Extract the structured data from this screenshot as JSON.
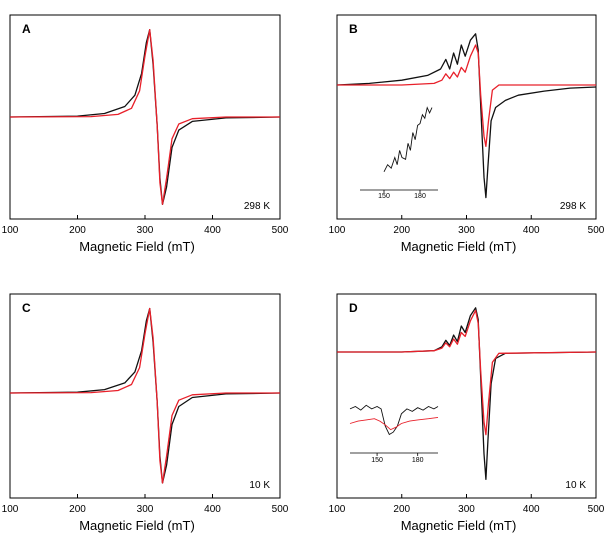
{
  "colors": {
    "black": "#111111",
    "red": "#e8202a",
    "axis": "#000000"
  },
  "chart_data": [
    {
      "id": "A",
      "type": "line",
      "panel_label": "A",
      "temperature_label": "298 K",
      "xlabel": "Magnetic Field (mT)",
      "ylabel": "",
      "title": "",
      "xlim": [
        100,
        500
      ],
      "ylim": [
        -1.1,
        1.1
      ],
      "xticks": [
        100,
        200,
        300,
        400,
        500
      ],
      "grid": false,
      "legend": "none",
      "series": [
        {
          "color": "black",
          "points": [
            [
              100,
              0
            ],
            [
              200,
              0.01
            ],
            [
              240,
              0.04
            ],
            [
              270,
              0.12
            ],
            [
              285,
              0.25
            ],
            [
              295,
              0.5
            ],
            [
              302,
              0.85
            ],
            [
              307,
              1.0
            ],
            [
              312,
              0.6
            ],
            [
              318,
              -0.1
            ],
            [
              322,
              -0.7
            ],
            [
              326,
              -1.0
            ],
            [
              332,
              -0.8
            ],
            [
              340,
              -0.35
            ],
            [
              350,
              -0.15
            ],
            [
              370,
              -0.05
            ],
            [
              420,
              -0.01
            ],
            [
              500,
              0
            ]
          ]
        },
        {
          "color": "red",
          "points": [
            [
              100,
              0
            ],
            [
              220,
              0.005
            ],
            [
              260,
              0.03
            ],
            [
              280,
              0.1
            ],
            [
              292,
              0.3
            ],
            [
              300,
              0.7
            ],
            [
              307,
              1.0
            ],
            [
              312,
              0.65
            ],
            [
              318,
              -0.1
            ],
            [
              322,
              -0.75
            ],
            [
              326,
              -1.0
            ],
            [
              332,
              -0.7
            ],
            [
              340,
              -0.25
            ],
            [
              350,
              -0.08
            ],
            [
              370,
              -0.02
            ],
            [
              420,
              0
            ],
            [
              500,
              0
            ]
          ]
        }
      ]
    },
    {
      "id": "B",
      "type": "line",
      "panel_label": "B",
      "temperature_label": "298 K",
      "xlabel": "Magnetic Field (mT)",
      "ylabel": "",
      "title": "",
      "xlim": [
        100,
        500
      ],
      "ylim": [
        -1.25,
        0.4
      ],
      "xticks": [
        100,
        200,
        300,
        400,
        500
      ],
      "grid": false,
      "legend": "none",
      "series": [
        {
          "color": "black",
          "points": [
            [
              100,
              0
            ],
            [
              150,
              0.01
            ],
            [
              200,
              0.03
            ],
            [
              240,
              0.06
            ],
            [
              260,
              0.1
            ],
            [
              268,
              0.16
            ],
            [
              274,
              0.1
            ],
            [
              280,
              0.2
            ],
            [
              286,
              0.13
            ],
            [
              292,
              0.25
            ],
            [
              298,
              0.18
            ],
            [
              306,
              0.28
            ],
            [
              314,
              0.32
            ],
            [
              318,
              0.22
            ],
            [
              322,
              -0.2
            ],
            [
              327,
              -0.9
            ],
            [
              330,
              -1.1
            ],
            [
              333,
              -0.8
            ],
            [
              338,
              -0.35
            ],
            [
              345,
              -0.22
            ],
            [
              360,
              -0.15
            ],
            [
              380,
              -0.1
            ],
            [
              420,
              -0.06
            ],
            [
              460,
              -0.03
            ],
            [
              500,
              -0.02
            ]
          ]
        },
        {
          "color": "red",
          "points": [
            [
              100,
              0
            ],
            [
              200,
              0
            ],
            [
              250,
              0.01
            ],
            [
              262,
              0.03
            ],
            [
              268,
              0.07
            ],
            [
              274,
              0.04
            ],
            [
              280,
              0.08
            ],
            [
              286,
              0.05
            ],
            [
              292,
              0.11
            ],
            [
              298,
              0.08
            ],
            [
              306,
              0.18
            ],
            [
              314,
              0.25
            ],
            [
              318,
              0.2
            ],
            [
              322,
              -0.1
            ],
            [
              327,
              -0.5
            ],
            [
              330,
              -0.6
            ],
            [
              334,
              -0.35
            ],
            [
              340,
              -0.05
            ],
            [
              350,
              0
            ],
            [
              500,
              0
            ]
          ]
        }
      ],
      "inset": {
        "xticks": [
          150,
          180
        ],
        "xlim": [
          130,
          195
        ],
        "series": [
          {
            "color": "black",
            "points": [
              [
                150,
                -0.8
              ],
              [
                153,
                -0.6
              ],
              [
                156,
                -0.7
              ],
              [
                159,
                -0.4
              ],
              [
                161,
                -0.6
              ],
              [
                163,
                -0.2
              ],
              [
                165,
                -0.4
              ],
              [
                168,
                -0.45
              ],
              [
                170,
                0.0
              ],
              [
                172,
                -0.2
              ],
              [
                174,
                0.3
              ],
              [
                176,
                0.1
              ],
              [
                178,
                0.5
              ],
              [
                180,
                0.55
              ],
              [
                182,
                0.8
              ],
              [
                184,
                0.7
              ],
              [
                186,
                1.0
              ],
              [
                188,
                0.85
              ],
              [
                190,
                1.0
              ]
            ]
          }
        ]
      }
    },
    {
      "id": "C",
      "type": "line",
      "panel_label": "C",
      "temperature_label": "10 K",
      "xlabel": "Magnetic Field (mT)",
      "ylabel": "",
      "title": "",
      "xlim": [
        100,
        500
      ],
      "ylim": [
        -1.1,
        1.1
      ],
      "xticks": [
        100,
        200,
        300,
        400,
        500
      ],
      "grid": false,
      "legend": "none",
      "series": [
        {
          "color": "black",
          "points": [
            [
              100,
              0
            ],
            [
              200,
              0.01
            ],
            [
              240,
              0.04
            ],
            [
              270,
              0.12
            ],
            [
              285,
              0.25
            ],
            [
              295,
              0.5
            ],
            [
              302,
              0.85
            ],
            [
              307,
              1.0
            ],
            [
              312,
              0.6
            ],
            [
              318,
              -0.1
            ],
            [
              322,
              -0.7
            ],
            [
              326,
              -1.0
            ],
            [
              332,
              -0.8
            ],
            [
              340,
              -0.35
            ],
            [
              350,
              -0.15
            ],
            [
              370,
              -0.05
            ],
            [
              420,
              -0.01
            ],
            [
              500,
              0
            ]
          ]
        },
        {
          "color": "red",
          "points": [
            [
              100,
              0
            ],
            [
              220,
              0.005
            ],
            [
              260,
              0.03
            ],
            [
              280,
              0.1
            ],
            [
              292,
              0.3
            ],
            [
              300,
              0.7
            ],
            [
              307,
              1.0
            ],
            [
              312,
              0.65
            ],
            [
              318,
              -0.1
            ],
            [
              322,
              -0.75
            ],
            [
              326,
              -1.0
            ],
            [
              332,
              -0.7
            ],
            [
              340,
              -0.25
            ],
            [
              350,
              -0.08
            ],
            [
              370,
              -0.02
            ],
            [
              420,
              0
            ],
            [
              500,
              0
            ]
          ]
        }
      ]
    },
    {
      "id": "D",
      "type": "line",
      "panel_label": "D",
      "temperature_label": "10 K",
      "xlabel": "Magnetic Field (mT)",
      "ylabel": "",
      "title": "",
      "xlim": [
        100,
        500
      ],
      "ylim": [
        -1.1,
        0.4
      ],
      "xticks": [
        100,
        200,
        300,
        400,
        500
      ],
      "grid": false,
      "legend": "none",
      "series": [
        {
          "color": "black",
          "points": [
            [
              100,
              0
            ],
            [
              200,
              0
            ],
            [
              250,
              0.01
            ],
            [
              262,
              0.04
            ],
            [
              268,
              0.09
            ],
            [
              274,
              0.05
            ],
            [
              280,
              0.13
            ],
            [
              286,
              0.08
            ],
            [
              292,
              0.2
            ],
            [
              298,
              0.15
            ],
            [
              306,
              0.28
            ],
            [
              314,
              0.34
            ],
            [
              318,
              0.25
            ],
            [
              322,
              -0.2
            ],
            [
              327,
              -0.8
            ],
            [
              330,
              -1.0
            ],
            [
              333,
              -0.7
            ],
            [
              338,
              -0.25
            ],
            [
              345,
              -0.05
            ],
            [
              360,
              -0.01
            ],
            [
              500,
              0
            ]
          ]
        },
        {
          "color": "red",
          "points": [
            [
              100,
              0
            ],
            [
              200,
              0
            ],
            [
              250,
              0.01
            ],
            [
              262,
              0.03
            ],
            [
              268,
              0.07
            ],
            [
              274,
              0.04
            ],
            [
              280,
              0.1
            ],
            [
              286,
              0.06
            ],
            [
              292,
              0.15
            ],
            [
              298,
              0.12
            ],
            [
              306,
              0.24
            ],
            [
              314,
              0.32
            ],
            [
              318,
              0.22
            ],
            [
              322,
              -0.15
            ],
            [
              327,
              -0.55
            ],
            [
              330,
              -0.65
            ],
            [
              334,
              -0.4
            ],
            [
              340,
              -0.08
            ],
            [
              350,
              -0.01
            ],
            [
              500,
              0
            ]
          ]
        }
      ],
      "inset": {
        "xticks": [
          150,
          180
        ],
        "xlim": [
          130,
          195
        ],
        "series": [
          {
            "color": "black",
            "points": [
              [
                130,
                0.5
              ],
              [
                134,
                0.6
              ],
              [
                138,
                0.45
              ],
              [
                142,
                0.65
              ],
              [
                146,
                0.5
              ],
              [
                150,
                0.6
              ],
              [
                153,
                0.5
              ],
              [
                156,
                -0.2
              ],
              [
                159,
                -0.55
              ],
              [
                162,
                -0.45
              ],
              [
                165,
                -0.2
              ],
              [
                168,
                0.3
              ],
              [
                172,
                0.5
              ],
              [
                176,
                0.4
              ],
              [
                180,
                0.55
              ],
              [
                184,
                0.45
              ],
              [
                188,
                0.6
              ],
              [
                192,
                0.5
              ],
              [
                195,
                0.6
              ]
            ]
          },
          {
            "color": "red",
            "points": [
              [
                130,
                -0.1
              ],
              [
                136,
                0.0
              ],
              [
                142,
                0.05
              ],
              [
                148,
                0.1
              ],
              [
                152,
                0.0
              ],
              [
                156,
                -0.15
              ],
              [
                160,
                -0.35
              ],
              [
                164,
                -0.25
              ],
              [
                168,
                -0.1
              ],
              [
                174,
                0.0
              ],
              [
                180,
                0.05
              ],
              [
                188,
                0.1
              ],
              [
                195,
                0.15
              ]
            ]
          }
        ]
      }
    }
  ]
}
